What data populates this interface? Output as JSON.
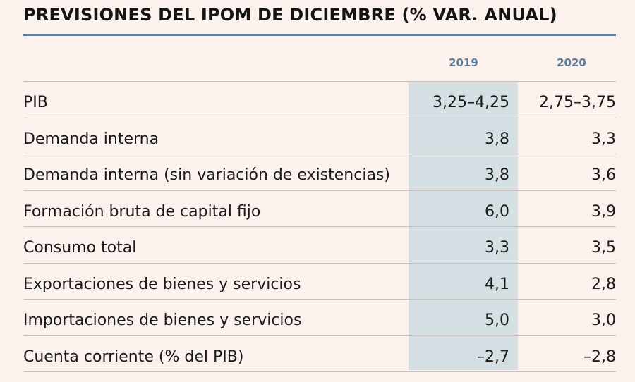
{
  "title": "PREVISIONES DEL IPOM DE DICIEMBRE (% VAR. ANUAL)",
  "colors": {
    "background": "#fbf2ee",
    "accent": "#5c7d99",
    "highlight_column": "#d6e0e4",
    "rule": "#c9c0bc"
  },
  "chart_data": {
    "type": "table",
    "title": "PREVISIONES DEL IPOM DE DICIEMBRE (% VAR. ANUAL)",
    "columns": [
      "2019",
      "2020"
    ],
    "highlighted_column": "2019",
    "rows": [
      {
        "label": "PIB",
        "values": [
          "3,25–4,25",
          "2,75–3,75"
        ]
      },
      {
        "label": "Demanda interna",
        "values": [
          "3,8",
          "3,3"
        ]
      },
      {
        "label": "Demanda interna (sin variación de existencias)",
        "values": [
          "3,8",
          "3,6"
        ]
      },
      {
        "label": "Formación bruta de capital fijo",
        "values": [
          "6,0",
          "3,9"
        ]
      },
      {
        "label": "Consumo total",
        "values": [
          "3,3",
          "3,5"
        ]
      },
      {
        "label": "Exportaciones de bienes y servicios",
        "values": [
          "4,1",
          "2,8"
        ]
      },
      {
        "label": "Importaciones de bienes y servicios",
        "values": [
          "5,0",
          "3,0"
        ]
      },
      {
        "label": "Cuenta corriente (% del PIB)",
        "values": [
          "–2,7",
          "–2,8"
        ]
      }
    ]
  }
}
